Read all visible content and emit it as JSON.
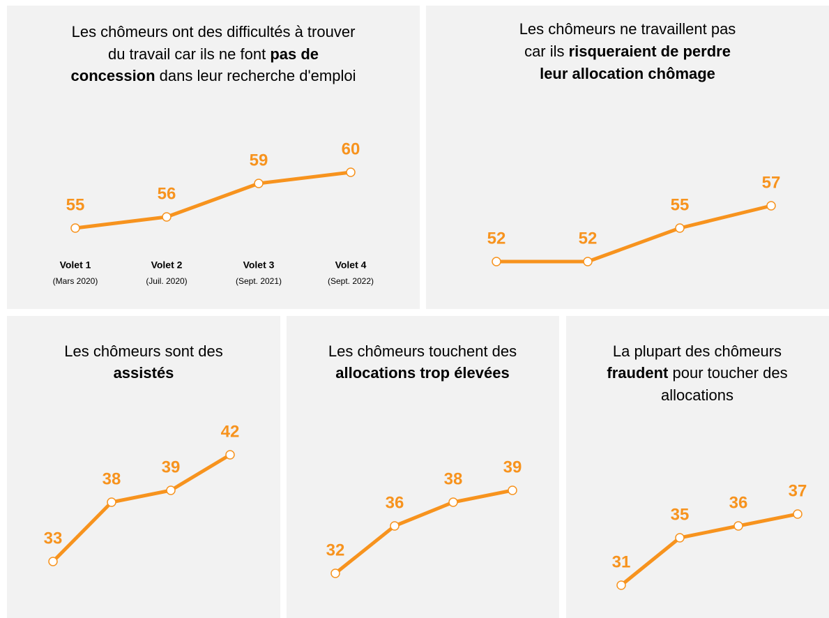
{
  "chart_data": [
    {
      "type": "line",
      "color": "#f7931e",
      "title": [
        [
          {
            "text": "Les chômeurs ont des difficultés à trouver"
          }
        ],
        [
          {
            "text": "du travail car ils ne font "
          },
          {
            "text": "pas de",
            "bold": true
          }
        ],
        [
          {
            "text": "concession",
            "bold": true
          },
          {
            "text": " dans leur recherche d'emploi"
          }
        ]
      ],
      "categories": [
        "Volet 1",
        "Volet 2",
        "Volet 3",
        "Volet 4"
      ],
      "category_notes": [
        "(Mars 2020)",
        "(Juil. 2020)",
        "(Sept. 2021)",
        "(Sept. 2022)"
      ],
      "values": [
        55,
        56,
        59,
        60
      ],
      "ylim": [
        50,
        62
      ]
    },
    {
      "type": "line",
      "color": "#f7931e",
      "title": [
        [
          {
            "text": "Les chômeurs ne travaillent pas"
          }
        ],
        [
          {
            "text": "car ils "
          },
          {
            "text": "risqueraient de perdre",
            "bold": true
          }
        ],
        [
          {
            "text": "leur allocation chômage",
            "bold": true
          }
        ]
      ],
      "categories": [
        null,
        null,
        null,
        null
      ],
      "values": [
        52,
        52,
        55,
        57
      ],
      "ylim": [
        50,
        62
      ]
    },
    {
      "type": "line",
      "color": "#f7931e",
      "title": [
        [
          {
            "text": "Les chômeurs sont des"
          }
        ],
        [
          {
            "text": "assistés",
            "bold": true
          }
        ]
      ],
      "categories": [
        null,
        null,
        null,
        null
      ],
      "values": [
        33,
        38,
        39,
        42
      ],
      "ylim": [
        30,
        45
      ]
    },
    {
      "type": "line",
      "color": "#f7931e",
      "title": [
        [
          {
            "text": "Les chômeurs touchent des"
          }
        ],
        [
          {
            "text": "allocations trop élevées",
            "bold": true
          }
        ]
      ],
      "categories": [
        null,
        null,
        null,
        null
      ],
      "values": [
        32,
        36,
        38,
        39
      ],
      "ylim": [
        30,
        45
      ]
    },
    {
      "type": "line",
      "color": "#f7931e",
      "title": [
        [
          {
            "text": "La plupart des chômeurs"
          }
        ],
        [
          {
            "text": "fraudent",
            "bold": true
          },
          {
            "text": " pour toucher des"
          }
        ],
        [
          {
            "text": "allocations"
          }
        ]
      ],
      "categories": [
        null,
        null,
        null,
        null
      ],
      "values": [
        31,
        35,
        36,
        37
      ],
      "ylim": [
        30,
        45
      ]
    }
  ]
}
